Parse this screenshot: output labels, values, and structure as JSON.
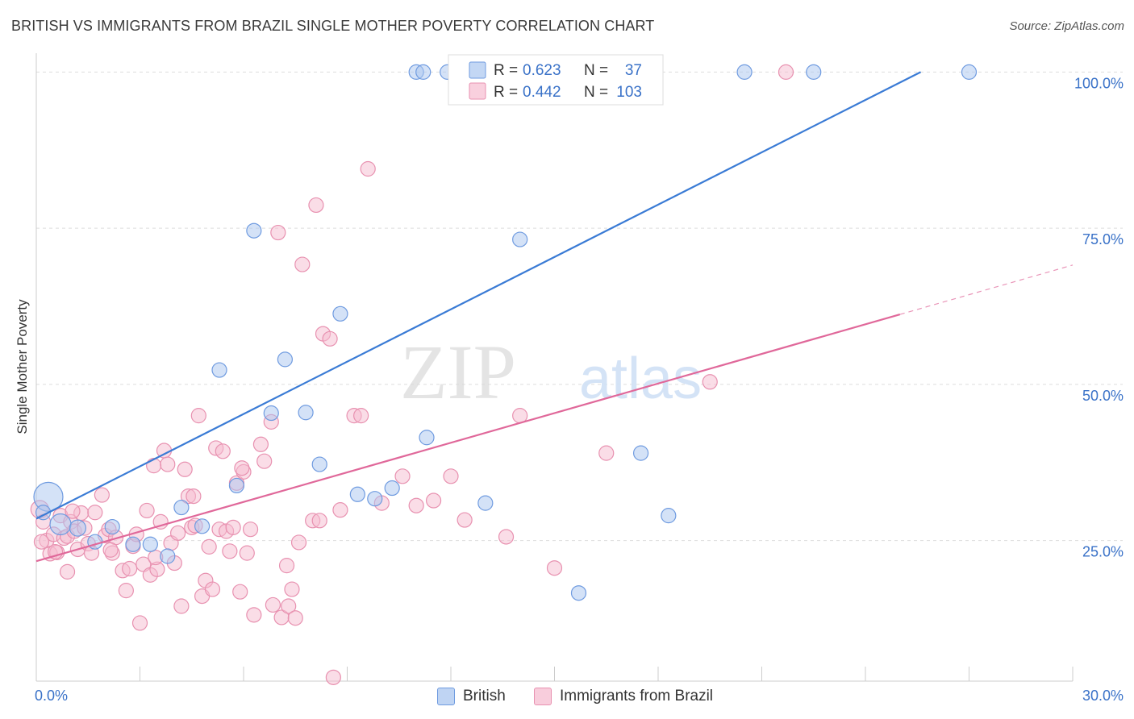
{
  "title": "BRITISH VS IMMIGRANTS FROM BRAZIL SINGLE MOTHER POVERTY CORRELATION CHART",
  "source": "Source: ZipAtlas.com",
  "colors": {
    "british_fill": "#a9c6ef",
    "british_stroke": "#6f9be0",
    "british_line": "#3a7bd5",
    "brazil_fill": "#f6bcd0",
    "brazil_stroke": "#e891b0",
    "brazil_line": "#e0689a",
    "axis_label": "#3a72c8",
    "grid": "#dddddd"
  },
  "chart_data": {
    "type": "scatter",
    "title": "BRITISH VS IMMIGRANTS FROM BRAZIL SINGLE MOTHER POVERTY CORRELATION CHART",
    "xlabel": "",
    "ylabel": "Single Mother Poverty",
    "xlim": [
      0,
      30
    ],
    "ylim": [
      2.5,
      102.5
    ],
    "x_tick_labels": [
      "0.0%",
      "30.0%"
    ],
    "y_tick_labels": [
      "25.0%",
      "50.0%",
      "75.0%",
      "100.0%"
    ],
    "y_ticks": [
      25,
      50,
      75,
      100
    ],
    "grid": true,
    "legend_position": "top-center",
    "watermark": {
      "left": "ZIP",
      "right": "atlas"
    },
    "series": [
      {
        "name": "British",
        "R": "0.623",
        "N": "37",
        "trend": {
          "x": [
            0,
            25.6
          ],
          "y": [
            28.5,
            100
          ]
        },
        "points": [
          [
            0.35,
            32.0,
            18
          ],
          [
            0.7,
            27.6,
            13
          ],
          [
            1.2,
            27.0,
            10
          ],
          [
            1.7,
            24.8,
            9
          ],
          [
            2.2,
            27.2,
            9
          ],
          [
            2.8,
            24.4,
            9
          ],
          [
            3.3,
            24.4,
            9
          ],
          [
            3.8,
            22.5,
            9
          ],
          [
            4.2,
            30.3,
            9
          ],
          [
            4.8,
            27.3,
            9
          ],
          [
            5.3,
            52.3,
            9
          ],
          [
            5.8,
            33.8,
            9
          ],
          [
            6.3,
            74.6,
            9
          ],
          [
            6.8,
            45.4,
            9
          ],
          [
            7.2,
            54.0,
            9
          ],
          [
            7.8,
            45.5,
            9
          ],
          [
            8.2,
            37.2,
            9
          ],
          [
            8.8,
            61.3,
            9
          ],
          [
            9.3,
            32.4,
            9
          ],
          [
            9.8,
            31.7,
            9
          ],
          [
            10.3,
            33.4,
            9
          ],
          [
            11.0,
            100.0,
            9
          ],
          [
            11.2,
            100.0,
            9
          ],
          [
            11.9,
            100.0,
            9
          ],
          [
            11.3,
            41.5,
            9
          ],
          [
            12.3,
            100.0,
            9
          ],
          [
            13.0,
            31.0,
            9
          ],
          [
            13.6,
            100.0,
            9
          ],
          [
            14.0,
            73.2,
            9
          ],
          [
            15.0,
            100.0,
            9
          ],
          [
            15.7,
            16.6,
            9
          ],
          [
            17.5,
            39.0,
            9
          ],
          [
            18.3,
            29.0,
            9
          ],
          [
            20.5,
            100.0,
            9
          ],
          [
            22.5,
            100.0,
            9
          ],
          [
            27.0,
            100.0,
            9
          ],
          [
            0.2,
            29.5,
            9
          ]
        ]
      },
      {
        "name": "Immigrants from Brazil",
        "R": "0.442",
        "N": "103",
        "trend": {
          "x": [
            0,
            25.0
          ],
          "y": [
            21.7,
            61.2
          ]
        },
        "trend_dashed": {
          "x": [
            25.0,
            30.0
          ],
          "y": [
            61.2,
            69.1
          ]
        },
        "points": [
          [
            0.1,
            30.0,
            11
          ],
          [
            0.2,
            28.0,
            9
          ],
          [
            0.3,
            25.0,
            9
          ],
          [
            0.4,
            22.9,
            9
          ],
          [
            0.5,
            26.0,
            9
          ],
          [
            0.6,
            23.1,
            9
          ],
          [
            0.7,
            29.0,
            9
          ],
          [
            0.8,
            25.4,
            9
          ],
          [
            0.9,
            25.7,
            9
          ],
          [
            0.9,
            20.0,
            9
          ],
          [
            1.0,
            28.0,
            9
          ],
          [
            1.1,
            26.5,
            9
          ],
          [
            1.2,
            23.6,
            9
          ],
          [
            1.3,
            29.4,
            9
          ],
          [
            1.4,
            27.0,
            9
          ],
          [
            1.5,
            24.5,
            9
          ],
          [
            1.6,
            23.0,
            9
          ],
          [
            1.7,
            29.5,
            9
          ],
          [
            1.9,
            32.3,
            9
          ],
          [
            2.0,
            25.8,
            9
          ],
          [
            2.1,
            26.8,
            9
          ],
          [
            2.2,
            23.0,
            9
          ],
          [
            2.3,
            25.5,
            9
          ],
          [
            2.5,
            20.2,
            9
          ],
          [
            2.6,
            17.0,
            9
          ],
          [
            2.7,
            20.5,
            9
          ],
          [
            2.8,
            24.1,
            9
          ],
          [
            2.9,
            26.0,
            9
          ],
          [
            3.0,
            11.8,
            9
          ],
          [
            3.1,
            21.2,
            9
          ],
          [
            3.2,
            29.8,
            9
          ],
          [
            3.3,
            19.5,
            9
          ],
          [
            3.4,
            37.0,
            9
          ],
          [
            3.5,
            20.4,
            9
          ],
          [
            3.6,
            28.0,
            9
          ],
          [
            3.7,
            39.4,
            9
          ],
          [
            3.8,
            37.2,
            9
          ],
          [
            3.9,
            24.6,
            9
          ],
          [
            4.0,
            21.4,
            9
          ],
          [
            4.1,
            26.2,
            9
          ],
          [
            4.2,
            14.5,
            9
          ],
          [
            4.3,
            36.4,
            9
          ],
          [
            4.4,
            32.1,
            9
          ],
          [
            4.5,
            27.1,
            9
          ],
          [
            4.6,
            27.4,
            9
          ],
          [
            4.7,
            45.0,
            9
          ],
          [
            4.8,
            16.1,
            9
          ],
          [
            4.9,
            18.6,
            9
          ],
          [
            5.0,
            24.0,
            9
          ],
          [
            5.1,
            17.2,
            9
          ],
          [
            5.2,
            39.8,
            9
          ],
          [
            5.3,
            26.8,
            9
          ],
          [
            5.4,
            39.3,
            9
          ],
          [
            5.5,
            26.5,
            9
          ],
          [
            5.6,
            23.3,
            9
          ],
          [
            5.7,
            27.1,
            9
          ],
          [
            5.8,
            34.2,
            9
          ],
          [
            5.9,
            16.8,
            9
          ],
          [
            6.0,
            36.0,
            9
          ],
          [
            6.1,
            23.0,
            9
          ],
          [
            6.2,
            26.8,
            9
          ],
          [
            6.3,
            13.1,
            9
          ],
          [
            6.5,
            40.4,
            9
          ],
          [
            6.6,
            37.7,
            9
          ],
          [
            6.8,
            44.0,
            9
          ],
          [
            7.0,
            74.3,
            9
          ],
          [
            7.1,
            12.7,
            9
          ],
          [
            7.3,
            14.5,
            9
          ],
          [
            7.4,
            17.2,
            9
          ],
          [
            7.5,
            12.6,
            9
          ],
          [
            7.6,
            24.7,
            9
          ],
          [
            7.7,
            69.2,
            9
          ],
          [
            8.0,
            28.2,
            9
          ],
          [
            8.1,
            78.7,
            9
          ],
          [
            8.2,
            28.2,
            9
          ],
          [
            8.3,
            58.1,
            9
          ],
          [
            8.5,
            57.3,
            9
          ],
          [
            8.6,
            3.1,
            9
          ],
          [
            8.8,
            29.9,
            9
          ],
          [
            9.2,
            45.0,
            9
          ],
          [
            9.4,
            45.0,
            9
          ],
          [
            9.6,
            84.5,
            9
          ],
          [
            10.0,
            31.0,
            9
          ],
          [
            10.6,
            35.3,
            9
          ],
          [
            11.0,
            30.6,
            9
          ],
          [
            11.5,
            31.4,
            9
          ],
          [
            12.0,
            35.3,
            9
          ],
          [
            12.4,
            28.3,
            9
          ],
          [
            13.6,
            25.6,
            9
          ],
          [
            14.0,
            45.0,
            9
          ],
          [
            15.0,
            20.6,
            9
          ],
          [
            16.5,
            39.0,
            9
          ],
          [
            19.5,
            50.4,
            9
          ],
          [
            21.7,
            100.0,
            9
          ],
          [
            0.15,
            24.8,
            9
          ],
          [
            0.55,
            23.2,
            9
          ],
          [
            1.05,
            29.7,
            9
          ],
          [
            2.15,
            23.5,
            9
          ],
          [
            3.45,
            22.3,
            9
          ],
          [
            4.55,
            32.1,
            9
          ],
          [
            5.95,
            36.6,
            9
          ],
          [
            6.85,
            14.7,
            9
          ],
          [
            7.25,
            21.0,
            9
          ]
        ]
      }
    ]
  }
}
